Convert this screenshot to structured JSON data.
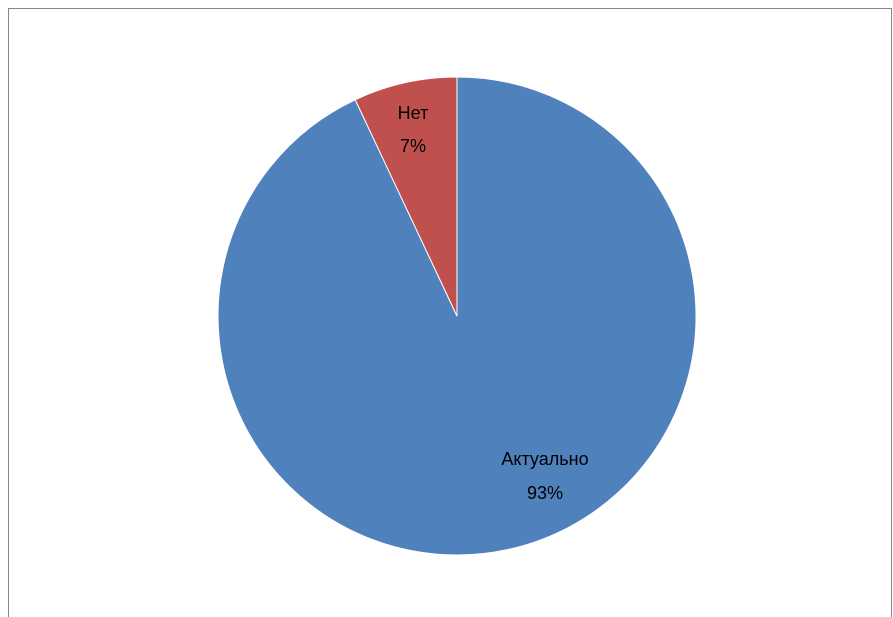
{
  "chart_data": {
    "type": "pie",
    "title": "",
    "slices": [
      {
        "label": "Актуально",
        "percent_label": "93%",
        "value": 93,
        "color": "#4F81BD"
      },
      {
        "label": "Нет",
        "percent_label": "7%",
        "value": 7,
        "color": "#C0504D"
      }
    ],
    "start_angle_deg": 0,
    "direction": "clockwise",
    "legend": "none"
  }
}
